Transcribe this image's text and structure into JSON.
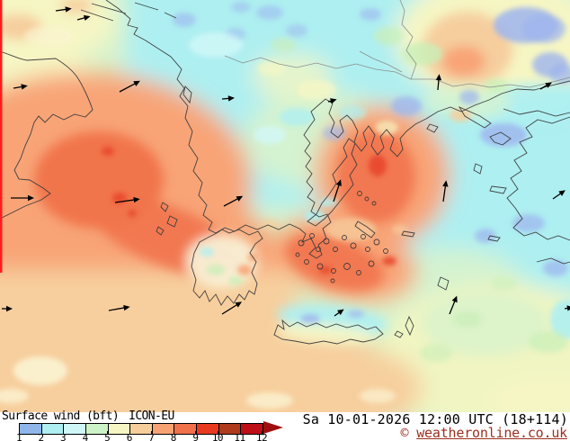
{
  "title": {
    "parameter": "Surface wind (bft)",
    "model": "ICON-EU"
  },
  "footer": {
    "datetime": "Sa 10-01-2026 12:00 UTC (18+114)",
    "copyright_symbol": "© ",
    "copyright_link": "weatheronline.co.uk"
  },
  "legend": {
    "unit": "bft",
    "tick_labels": [
      "1",
      "2",
      "3",
      "4",
      "5",
      "6",
      "7",
      "8",
      "9",
      "10",
      "11",
      "12"
    ],
    "segment_colors": [
      "#8FB6EA",
      "#AEEFF1",
      "#CFF7F8",
      "#CDF4C8",
      "#F6F6C4",
      "#F5CE9A",
      "#F7A273",
      "#F0714A",
      "#E83A1E",
      "#AF3A1C",
      "#BE0E18"
    ],
    "arrow_color": "#9E0F10",
    "tick_spacing_px": 24.55
  },
  "map": {
    "palette": {
      "bft1_blue": "#9DB4EE",
      "bft2_cyan": "#AFEFF1",
      "bft3_pale_cyan": "#D2F7F7",
      "bft4_pale_green": "#D8F3CC",
      "bft5_pale_yellow": "#F6F6C4",
      "bft6_peach": "#F7CF9E",
      "bft7_salmon": "#F8A477",
      "bft8_coral": "#F1744C",
      "bft9_red": "#E8472B"
    },
    "left_edge_color": "#FF1C1C",
    "coast_color": "#3A3A3A",
    "border_color": "#8A8A8A",
    "arrow_stroke": "#000000",
    "wind_arrows": [
      [
        62,
        12,
        -8,
        18
      ],
      [
        86,
        22,
        -15,
        15
      ],
      [
        15,
        98,
        -10,
        16
      ],
      [
        133,
        102,
        -28,
        26
      ],
      [
        247,
        110,
        -5,
        14
      ],
      [
        365,
        113,
        -15,
        10
      ],
      [
        487,
        100,
        -85,
        18
      ],
      [
        601,
        99,
        -30,
        15
      ],
      [
        12,
        220,
        0,
        26
      ],
      [
        128,
        225,
        -8,
        28
      ],
      [
        249,
        229,
        -28,
        24
      ],
      [
        371,
        224,
        -72,
        26
      ],
      [
        493,
        224,
        -82,
        24
      ],
      [
        615,
        221,
        -35,
        17
      ],
      [
        2,
        343,
        0,
        12
      ],
      [
        121,
        345,
        -10,
        24
      ],
      [
        247,
        349,
        -32,
        26
      ],
      [
        372,
        351,
        -35,
        13
      ],
      [
        500,
        349,
        -68,
        22
      ],
      [
        628,
        343,
        -10,
        10
      ]
    ]
  }
}
